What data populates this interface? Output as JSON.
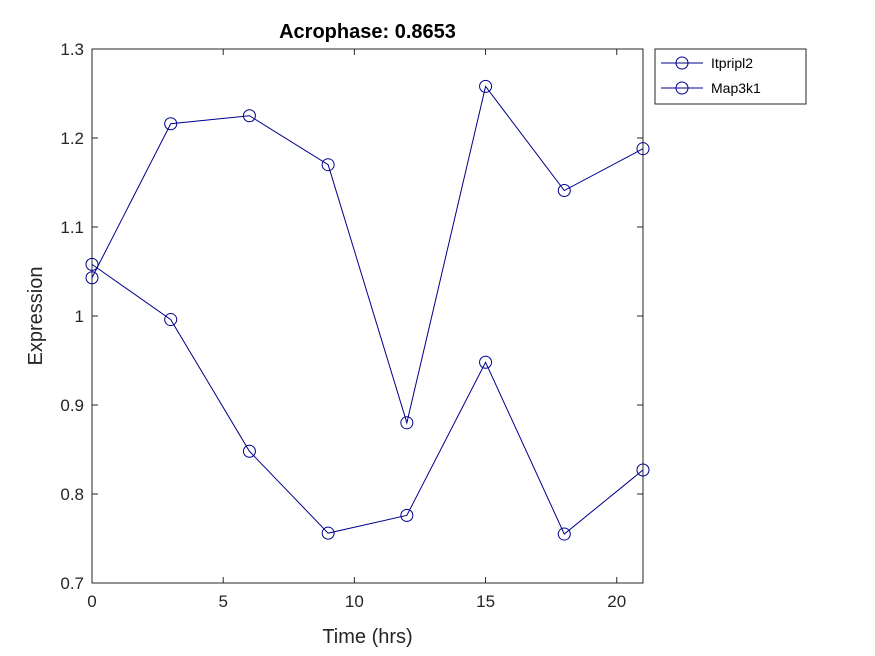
{
  "chart_data": {
    "type": "line",
    "title": "Acrophase: 0.8653",
    "xlabel": "Time (hrs)",
    "ylabel": "Expression",
    "xlim": [
      0,
      21
    ],
    "ylim": [
      0.7,
      1.3
    ],
    "xticks": [
      0,
      5,
      10,
      15,
      20
    ],
    "yticks": [
      0.7,
      0.8,
      0.9,
      1.0,
      1.1,
      1.2,
      1.3
    ],
    "xtick_labels": [
      "0",
      "5",
      "10",
      "15",
      "20"
    ],
    "ytick_labels": [
      "0.7",
      "0.8",
      "0.9",
      "1",
      "1.1",
      "1.2",
      "1.3"
    ],
    "x": [
      0,
      3,
      6,
      9,
      12,
      15,
      18,
      21
    ],
    "series": [
      {
        "name": "Itpripl2",
        "values": [
          1.043,
          1.216,
          1.225,
          1.17,
          0.88,
          1.258,
          1.141,
          1.188
        ]
      },
      {
        "name": "Map3k1",
        "values": [
          1.058,
          0.996,
          0.848,
          0.756,
          0.776,
          0.948,
          0.755,
          0.827
        ]
      }
    ],
    "marker": "circle-open",
    "line_color": "#00008b",
    "grid": false,
    "legend_position": "outside-top-right"
  }
}
